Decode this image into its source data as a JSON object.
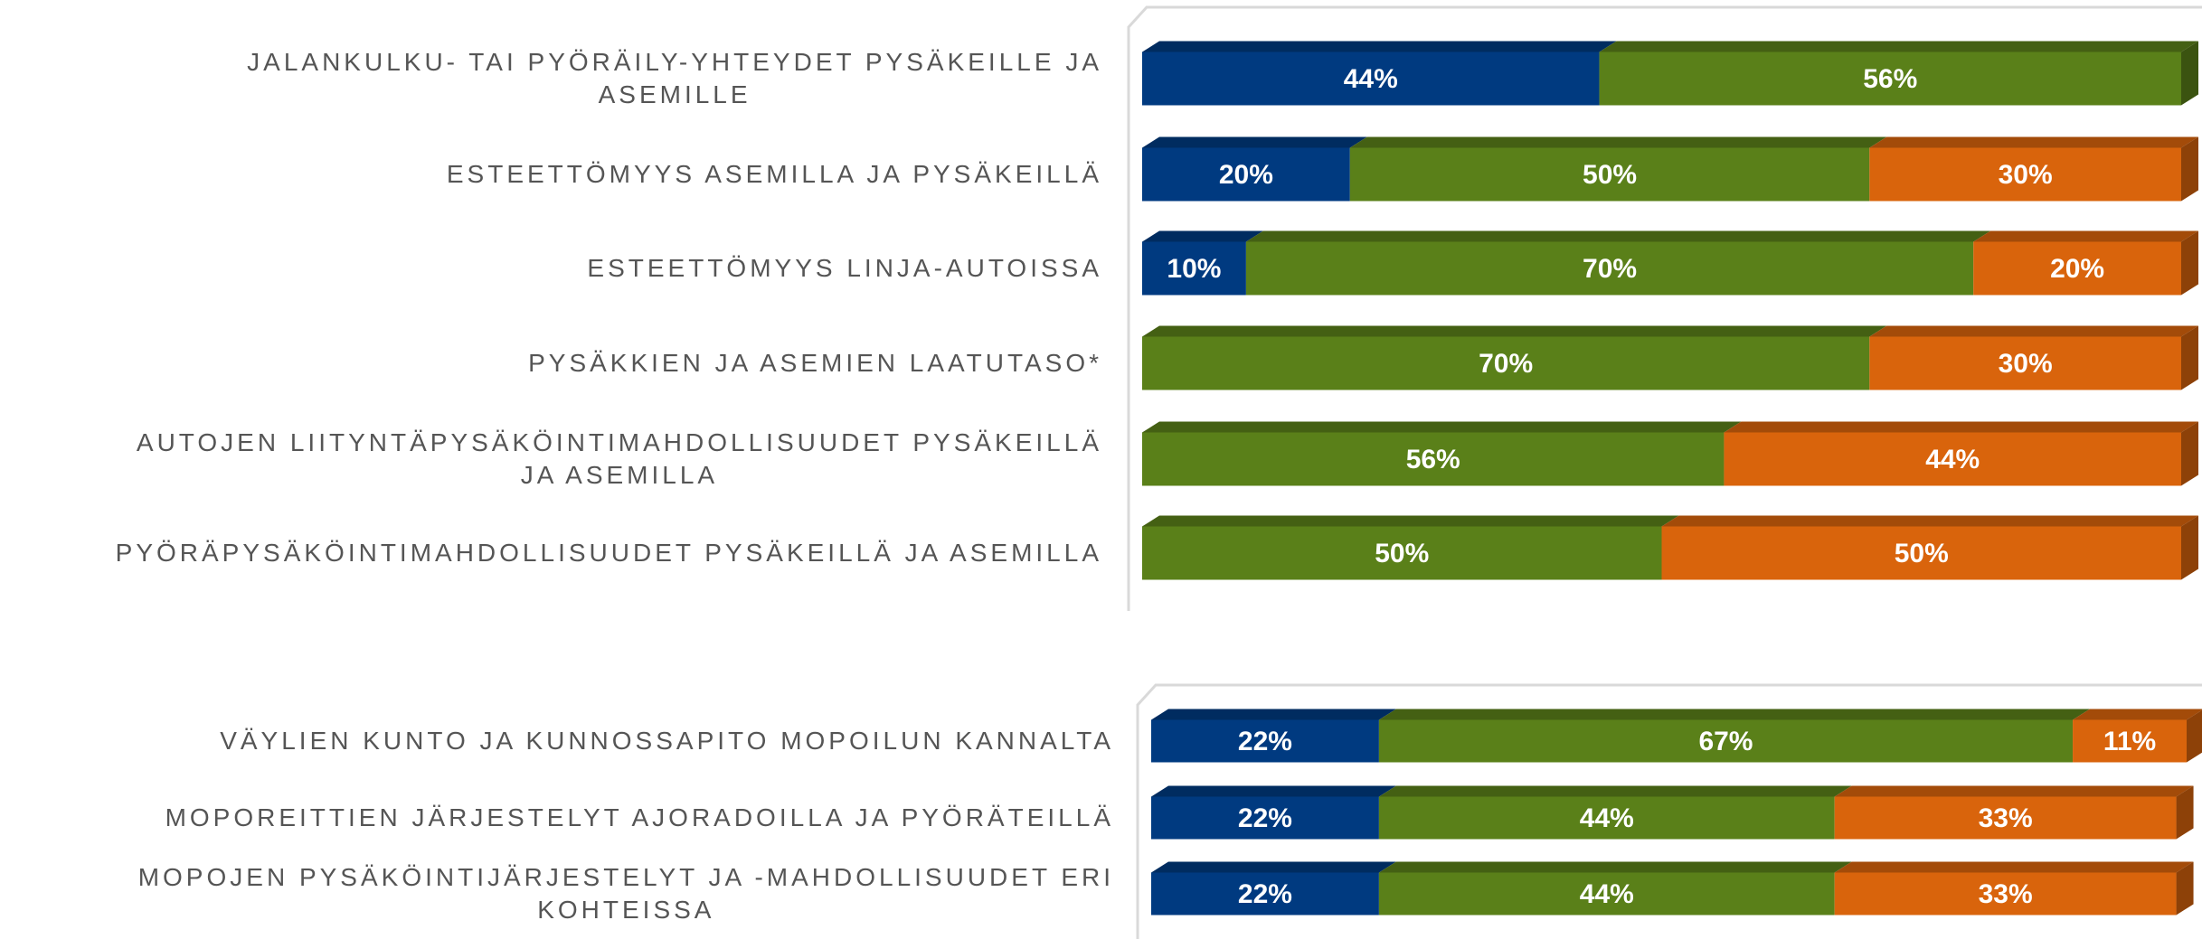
{
  "chart_data": [
    {
      "type": "bar",
      "orientation": "horizontal",
      "stacked": true,
      "categories": [
        "JALANKULKU- TAI PYÖRÄILY-YHTEYDET PYSÄKEILLE JA\nASEMILLE",
        "ESTEETTÖMYYS ASEMILLA JA PYSÄKEILLÄ",
        "ESTEETTÖMYYS LINJA-AUTOISSA",
        "PYSÄKKIEN JA ASEMIEN LAATUTASO*",
        "AUTOJEN LIITYNTÄPYSÄKÖINTIMAHDOLLISUUDET PYSÄKEILLÄ\nJA ASEMILLA",
        "PYÖRÄPYSÄKÖINTIMAHDOLLISUUDET PYSÄKEILLÄ JA ASEMILLA"
      ],
      "xlim": [
        0,
        100
      ],
      "series": [
        {
          "color": "#003a80",
          "values": [
            44,
            20,
            10,
            null,
            null,
            null
          ],
          "value_labels": [
            "44%",
            "20%",
            "10%",
            null,
            null,
            null
          ]
        },
        {
          "color": "#5a8019",
          "values": [
            56,
            50,
            70,
            70,
            56,
            50
          ],
          "value_labels": [
            "56%",
            "50%",
            "70%",
            "70%",
            "56%",
            "50%"
          ]
        },
        {
          "color": "#d9640c",
          "values": [
            null,
            30,
            20,
            30,
            44,
            50
          ],
          "value_labels": [
            null,
            "30%",
            "20%",
            "30%",
            "44%",
            "50%"
          ]
        }
      ]
    },
    {
      "type": "bar",
      "orientation": "horizontal",
      "stacked": true,
      "categories": [
        "VÄYLIEN KUNTO JA KUNNOSSAPITO MOPOILUN KANNALTA",
        "MOPOREITTIEN JÄRJESTELYT AJORADOILLA JA PYÖRÄTEILLÄ",
        "MOPOJEN PYSÄKÖINTIJÄRJESTELYT JA -MAHDOLLISUUDET ERI\nKOHTEISSA"
      ],
      "xlim": [
        0,
        100
      ],
      "series": [
        {
          "color": "#003a80",
          "values": [
            22,
            22,
            22
          ],
          "value_labels": [
            "22%",
            "22%",
            "22%"
          ]
        },
        {
          "color": "#5a8019",
          "values": [
            67,
            44,
            44
          ],
          "value_labels": [
            "67%",
            "44%",
            "44%"
          ]
        },
        {
          "color": "#d9640c",
          "values": [
            11,
            33,
            33
          ],
          "value_labels": [
            "11%",
            "33%",
            "33%"
          ]
        }
      ]
    }
  ]
}
